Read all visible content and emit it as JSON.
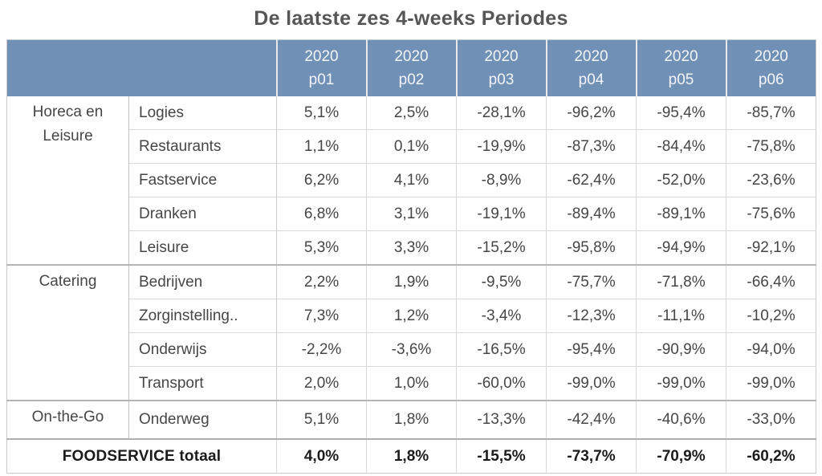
{
  "title": "De laatste zes 4-weeks Periodes",
  "colors": {
    "header_bg": "#7090b6",
    "header_text": "#f2f5f9",
    "title_text": "#565656",
    "body_text": "#464646",
    "total_text": "#1b1b1b",
    "row_border": "#d9d9d9",
    "group_border": "#b5b5b5"
  },
  "chart_data": {
    "type": "table",
    "title": "De laatste zes 4-weeks Periodes",
    "column_headers": [
      {
        "year": "2020",
        "period": "p01"
      },
      {
        "year": "2020",
        "period": "p02"
      },
      {
        "year": "2020",
        "period": "p03"
      },
      {
        "year": "2020",
        "period": "p04"
      },
      {
        "year": "2020",
        "period": "p05"
      },
      {
        "year": "2020",
        "period": "p06"
      }
    ],
    "groups": [
      {
        "label": "Horeca en Leisure",
        "rows": [
          {
            "label": "Logies",
            "values": [
              "5,1%",
              "2,5%",
              "-28,1%",
              "-96,2%",
              "-95,4%",
              "-85,7%"
            ]
          },
          {
            "label": "Restaurants",
            "values": [
              "1,1%",
              "0,1%",
              "-19,9%",
              "-87,3%",
              "-84,4%",
              "-75,8%"
            ]
          },
          {
            "label": "Fastservice",
            "values": [
              "6,2%",
              "4,1%",
              "-8,9%",
              "-62,4%",
              "-52,0%",
              "-23,6%"
            ]
          },
          {
            "label": "Dranken",
            "values": [
              "6,8%",
              "3,1%",
              "-19,1%",
              "-89,4%",
              "-89,1%",
              "-75,6%"
            ]
          },
          {
            "label": "Leisure",
            "values": [
              "5,3%",
              "3,3%",
              "-15,2%",
              "-95,8%",
              "-94,9%",
              "-92,1%"
            ]
          }
        ]
      },
      {
        "label": "Catering",
        "rows": [
          {
            "label": "Bedrijven",
            "values": [
              "2,2%",
              "1,9%",
              "-9,5%",
              "-75,7%",
              "-71,8%",
              "-66,4%"
            ]
          },
          {
            "label": "Zorginstelling..",
            "values": [
              "7,3%",
              "1,2%",
              "-3,4%",
              "-12,3%",
              "-11,1%",
              "-10,2%"
            ]
          },
          {
            "label": "Onderwijs",
            "values": [
              "-2,2%",
              "-3,6%",
              "-16,5%",
              "-95,4%",
              "-90,9%",
              "-94,0%"
            ]
          },
          {
            "label": "Transport",
            "values": [
              "2,0%",
              "1,0%",
              "-60,0%",
              "-99,0%",
              "-99,0%",
              "-99,0%"
            ]
          }
        ]
      },
      {
        "label": "On-the-Go",
        "rows": [
          {
            "label": "Onderweg",
            "values": [
              "5,1%",
              "1,8%",
              "-13,3%",
              "-42,4%",
              "-40,6%",
              "-33,0%"
            ]
          }
        ]
      }
    ],
    "total": {
      "label": "FOODSERVICE totaal",
      "values": [
        "4,0%",
        "1,8%",
        "-15,5%",
        "-73,7%",
        "-70,9%",
        "-60,2%"
      ]
    }
  }
}
